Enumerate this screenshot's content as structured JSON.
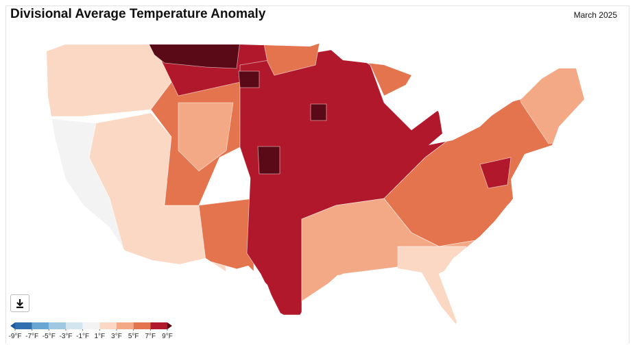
{
  "header": {
    "title": "Divisional Average Temperature Anomaly",
    "date": "March 2025"
  },
  "legend": {
    "ticks": [
      {
        "value": -9,
        "label": "-9°F"
      },
      {
        "value": -7,
        "label": "-7°F"
      },
      {
        "value": -5,
        "label": "-5°F"
      },
      {
        "value": -3,
        "label": "-3°F"
      },
      {
        "value": -1,
        "label": "-1°F"
      },
      {
        "value": 1,
        "label": "1°F"
      },
      {
        "value": 3,
        "label": "3°F"
      },
      {
        "value": 5,
        "label": "5°F"
      },
      {
        "value": 7,
        "label": "7°F"
      },
      {
        "value": 9,
        "label": "9°F"
      }
    ],
    "colors": [
      "#1f5a9c",
      "#2f6fb0",
      "#6aa6d2",
      "#9fc9e3",
      "#d3e6f0",
      "#f3f3f3",
      "#fbd8c4",
      "#f3a886",
      "#e3744e",
      "#b2182b",
      "#5a0a16"
    ]
  }
}
